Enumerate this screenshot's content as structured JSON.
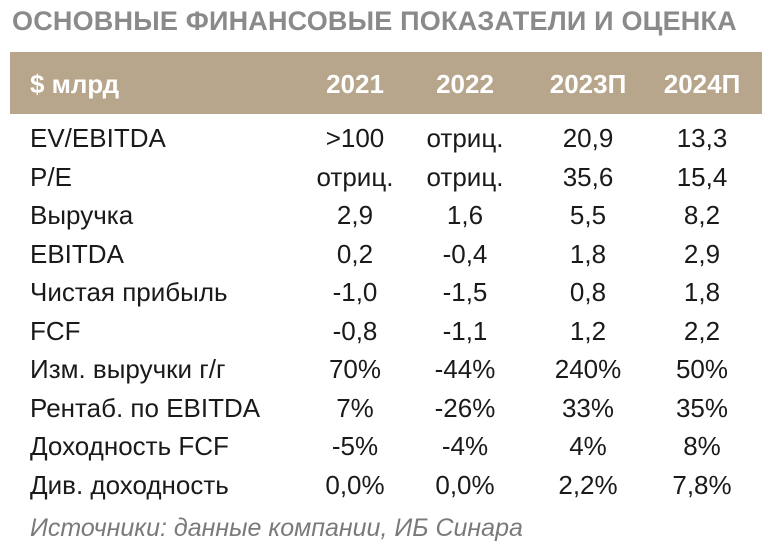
{
  "title": "ОСНОВНЫЕ ФИНАНСОВЫЕ ПОКАЗАТЕЛИ И ОЦЕНКА",
  "table": {
    "columns": [
      "$ млрд",
      "2021",
      "2022",
      "2023П",
      "2024П"
    ],
    "rows": [
      [
        "EV/EBITDA",
        ">100",
        "отриц.",
        "20,9",
        "13,3"
      ],
      [
        "P/E",
        "отриц.",
        "отриц.",
        "35,6",
        "15,4"
      ],
      [
        "Выручка",
        "2,9",
        "1,6",
        "5,5",
        "8,2"
      ],
      [
        "EBITDA",
        "0,2",
        "-0,4",
        "1,8",
        "2,9"
      ],
      [
        "Чистая прибыль",
        "-1,0",
        "-1,5",
        "0,8",
        "1,8"
      ],
      [
        "FCF",
        "-0,8",
        "-1,1",
        "1,2",
        "2,2"
      ],
      [
        "Изм. выручки г/г",
        "70%",
        "-44%",
        "240%",
        "50%"
      ],
      [
        "Рентаб. по EBITDA",
        "7%",
        "-26%",
        "33%",
        "35%"
      ],
      [
        "Доходность FCF",
        "-5%",
        "-4%",
        "4%",
        "8%"
      ],
      [
        "Див. доходность",
        "0,0%",
        "0,0%",
        "2,2%",
        "7,8%"
      ]
    ]
  },
  "source": "Источники: данные компании, ИБ Синара",
  "colors": {
    "header_bg": "#b7a68b",
    "header_text": "#ffffff",
    "title_text": "#8a8a8a",
    "body_text": "#1a1a1a",
    "source_text": "#7a7a7a"
  }
}
